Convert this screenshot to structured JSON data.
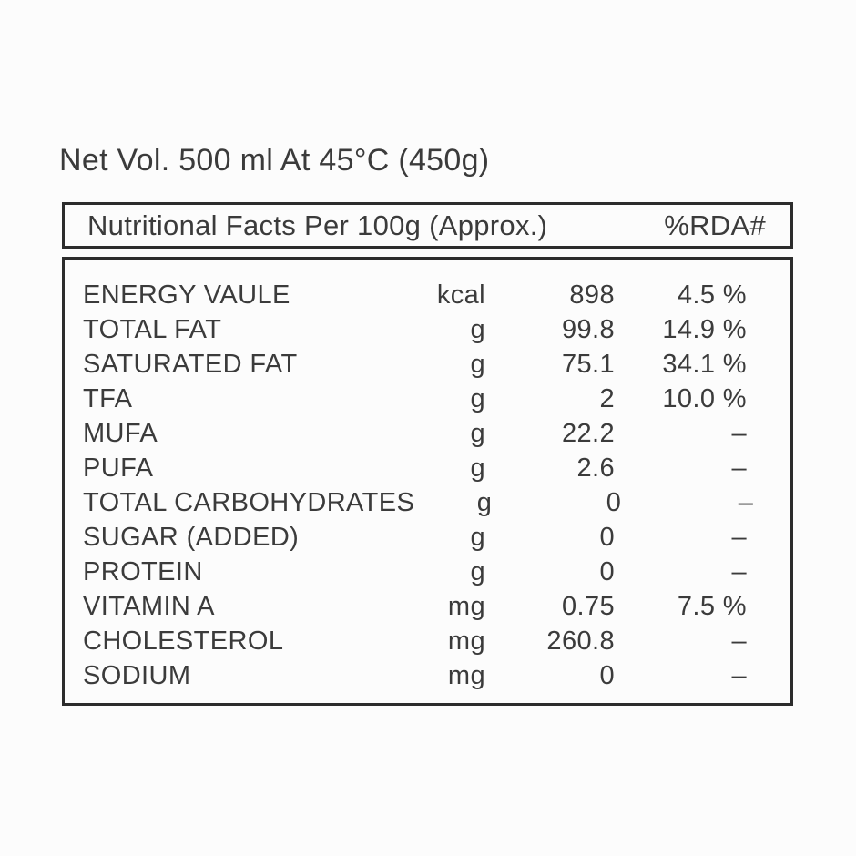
{
  "page": {
    "title": "Net Vol. 500 ml At 45°C (450g)"
  },
  "nutrition_table": {
    "header": {
      "caption": "Nutritional Facts Per 100g (Approx.)",
      "rda_caption": "%RDA#"
    },
    "rows": [
      {
        "name": "ENERGY VAULE",
        "unit": "kcal",
        "value": "898",
        "rda": "4.5 %"
      },
      {
        "name": "TOTAL FAT",
        "unit": "g",
        "value": "99.8",
        "rda": "14.9 %"
      },
      {
        "name": "SATURATED FAT",
        "unit": "g",
        "value": "75.1",
        "rda": "34.1 %"
      },
      {
        "name": "TFA",
        "unit": "g",
        "value": "2",
        "rda": "10.0 %"
      },
      {
        "name": "MUFA",
        "unit": "g",
        "value": "22.2",
        "rda": "–"
      },
      {
        "name": "PUFA",
        "unit": "g",
        "value": "2.6",
        "rda": "–"
      },
      {
        "name": "TOTAL CARBOHYDRATES",
        "unit": "g",
        "value": "0",
        "rda": "–"
      },
      {
        "name": "SUGAR (ADDED)",
        "unit": "g",
        "value": "0",
        "rda": "–"
      },
      {
        "name": "PROTEIN",
        "unit": "g",
        "value": "0",
        "rda": "–"
      },
      {
        "name": "VITAMIN A",
        "unit": "mg",
        "value": "0.75",
        "rda": "7.5 %"
      },
      {
        "name": "CHOLESTEROL",
        "unit": "mg",
        "value": "260.8",
        "rda": "–"
      },
      {
        "name": "SODIUM",
        "unit": "mg",
        "value": "0",
        "rda": "–"
      }
    ]
  },
  "colors": {
    "background": "#fcfcfc",
    "text": "#3b3b3b",
    "border": "#2c2c2c"
  }
}
